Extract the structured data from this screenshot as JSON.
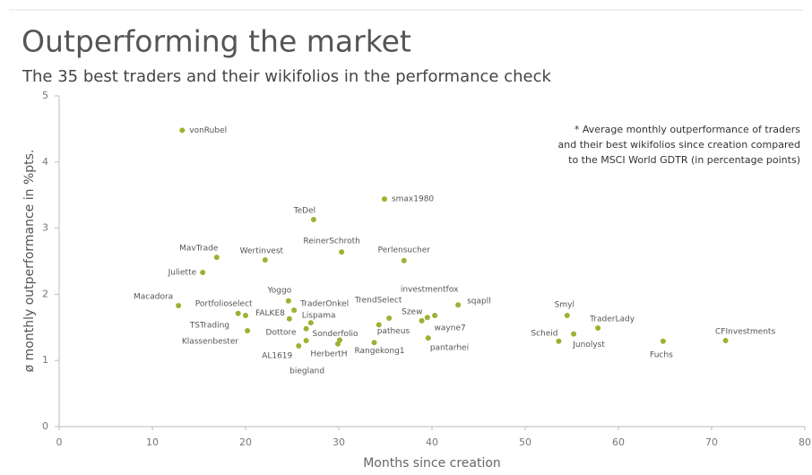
{
  "chart_data": {
    "type": "scatter",
    "title": "Outperforming the market",
    "subtitle": "The 35 best traders and their wikifolios in the performance check",
    "x_label": "Months since creation",
    "y_label": "ø monthly outperformance in %pts.",
    "annotation": [
      "* Average monthly outperformance of traders",
      "and their best wikifolios since creation compared",
      "to the MSCI World GDTR (in percentage points)"
    ],
    "xlim": [
      0,
      80
    ],
    "xticks": [
      0,
      10,
      20,
      30,
      40,
      50,
      60,
      70,
      80
    ],
    "ylim": [
      0,
      5
    ],
    "yticks": [
      0,
      1,
      2,
      3,
      4,
      5
    ],
    "grid": false,
    "series": [
      {
        "color": "#9db132",
        "labels": [
          "vonRubel",
          "TeDel",
          "smax1980",
          "ReinerSchroth",
          "Perlensucher",
          "MavTrade",
          "Wertinvest",
          "Juliette",
          "Macadora",
          "Portfolioselect",
          "TSTrading",
          "Klassenbester",
          "Yoggo",
          "TraderOnkel",
          "FALKE8",
          "Lispama",
          "Dottore",
          "AL1619",
          "biegland",
          "Sonderfolio",
          "HerbertH",
          "TrendSelect",
          "patheus",
          "Rangekong1",
          "investmentfox",
          "Szew",
          "wayne7",
          "pantarhei",
          "sqapll",
          "Smyl",
          "TraderLady",
          "Scheid",
          "Junolyst",
          "Fuchs",
          "CFInvestments"
        ],
        "x": [
          13.2,
          27.3,
          34.9,
          30.3,
          37.0,
          16.9,
          22.1,
          15.4,
          12.8,
          19.2,
          20.0,
          20.2,
          24.6,
          25.2,
          24.7,
          27.0,
          26.5,
          25.7,
          26.5,
          30.1,
          29.9,
          35.4,
          34.3,
          33.8,
          40.3,
          39.5,
          38.9,
          39.6,
          42.8,
          54.5,
          57.8,
          53.6,
          55.2,
          64.8,
          71.5
        ],
        "values": [
          4.48,
          3.13,
          3.44,
          2.64,
          2.51,
          2.56,
          2.52,
          2.33,
          1.83,
          1.71,
          1.68,
          1.45,
          1.9,
          1.76,
          1.63,
          1.57,
          1.48,
          1.22,
          1.3,
          1.31,
          1.25,
          1.64,
          1.54,
          1.27,
          1.68,
          1.65,
          1.6,
          1.34,
          1.84,
          1.68,
          1.49,
          1.29,
          1.4,
          1.29,
          1.3
        ]
      }
    ]
  }
}
